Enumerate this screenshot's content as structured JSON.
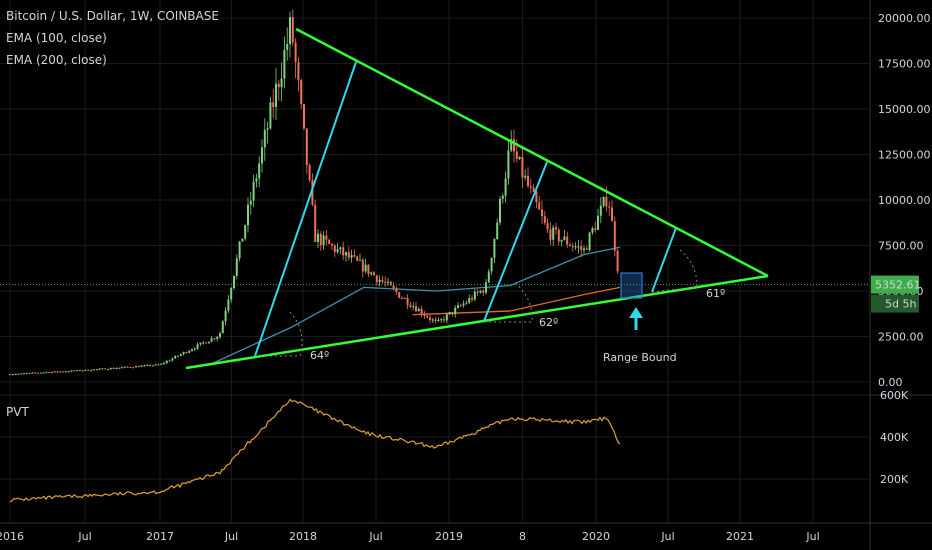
{
  "header": {
    "symbol_line": "Bitcoin / U.S. Dollar, 1W, COINBASE",
    "indicators": [
      "EMA (100, close)",
      "EMA (200, close)"
    ]
  },
  "pvt_label": "PVT",
  "price_axis": {
    "ticks": [
      "20000.00",
      "17500.00",
      "15000.00",
      "12500.00",
      "10000.00",
      "7500.00",
      "5000.00",
      "2500.00",
      "0.00"
    ],
    "current_price": "5352.61",
    "countdown": "5d 5h"
  },
  "pvt_axis": {
    "ticks": [
      "600K",
      "400K",
      "200K"
    ]
  },
  "time_axis": {
    "ticks": [
      "2016",
      "Jul",
      "2017",
      "Jul",
      "2018",
      "Jul",
      "2019",
      "8",
      "2020",
      "Jul",
      "2021",
      "Jul"
    ]
  },
  "annotations": {
    "range_bound": "Range Bound",
    "angle_1": "64º",
    "angle_2": "62º",
    "angle_3": "61º"
  },
  "colors": {
    "background": "#000000",
    "up": "#7fd17f",
    "down": "#f0705a",
    "ema100": "#3f8fb0",
    "ema200": "#e06a2a",
    "triangle": "#33ff33",
    "fan": "#2fd8ea",
    "pvt": "#e0a030",
    "price_line": "#3fae4a",
    "range_box": "#2a78d8",
    "grid": "#1a1a1a"
  },
  "chart_data": [
    {
      "type": "candlestick",
      "title": "Bitcoin / U.S. Dollar, 1W, COINBASE",
      "xlabel": "",
      "ylabel": "",
      "x_range": [
        "2016-01",
        "2021-12"
      ],
      "ylim": [
        0,
        20000
      ],
      "key_points": [
        {
          "date": "2016-01",
          "price": 430
        },
        {
          "date": "2016-07",
          "price": 650
        },
        {
          "date": "2017-01",
          "price": 950
        },
        {
          "date": "2017-06",
          "price": 2600
        },
        {
          "date": "2017-12",
          "price": 19600
        },
        {
          "date": "2018-02",
          "price": 8000
        },
        {
          "date": "2018-06",
          "price": 6300
        },
        {
          "date": "2018-12",
          "price": 3200
        },
        {
          "date": "2019-04",
          "price": 5200
        },
        {
          "date": "2019-06",
          "price": 13000
        },
        {
          "date": "2019-09",
          "price": 8300
        },
        {
          "date": "2019-12",
          "price": 7200
        },
        {
          "date": "2020-02",
          "price": 10300
        },
        {
          "date": "2020-03",
          "price": 5352.61
        }
      ],
      "series": [
        {
          "name": "EMA (100, close)",
          "points": [
            {
              "date": "2017-05",
              "price": 900
            },
            {
              "date": "2017-12",
              "price": 3000
            },
            {
              "date": "2018-06",
              "price": 5200
            },
            {
              "date": "2018-12",
              "price": 5000
            },
            {
              "date": "2019-06",
              "price": 5300
            },
            {
              "date": "2019-12",
              "price": 7000
            },
            {
              "date": "2020-03",
              "price": 7400
            }
          ]
        },
        {
          "name": "EMA (200, close)",
          "points": [
            {
              "date": "2018-10",
              "price": 3700
            },
            {
              "date": "2019-06",
              "price": 3900
            },
            {
              "date": "2019-12",
              "price": 4800
            },
            {
              "date": "2020-03",
              "price": 5200
            }
          ]
        }
      ],
      "current_price": 5352.61
    },
    {
      "type": "line",
      "title": "PVT",
      "xlabel": "",
      "ylabel": "",
      "ylim": [
        0,
        650000
      ],
      "series": [
        {
          "name": "PVT",
          "points": [
            {
              "date": "2016-01",
              "value": 100000
            },
            {
              "date": "2017-01",
              "value": 140000
            },
            {
              "date": "2017-06",
              "value": 230000
            },
            {
              "date": "2017-12",
              "value": 580000
            },
            {
              "date": "2018-06",
              "value": 420000
            },
            {
              "date": "2018-12",
              "value": 350000
            },
            {
              "date": "2019-06",
              "value": 490000
            },
            {
              "date": "2019-12",
              "value": 470000
            },
            {
              "date": "2020-02",
              "value": 490000
            },
            {
              "date": "2020-03",
              "value": 360000
            }
          ]
        }
      ]
    }
  ]
}
